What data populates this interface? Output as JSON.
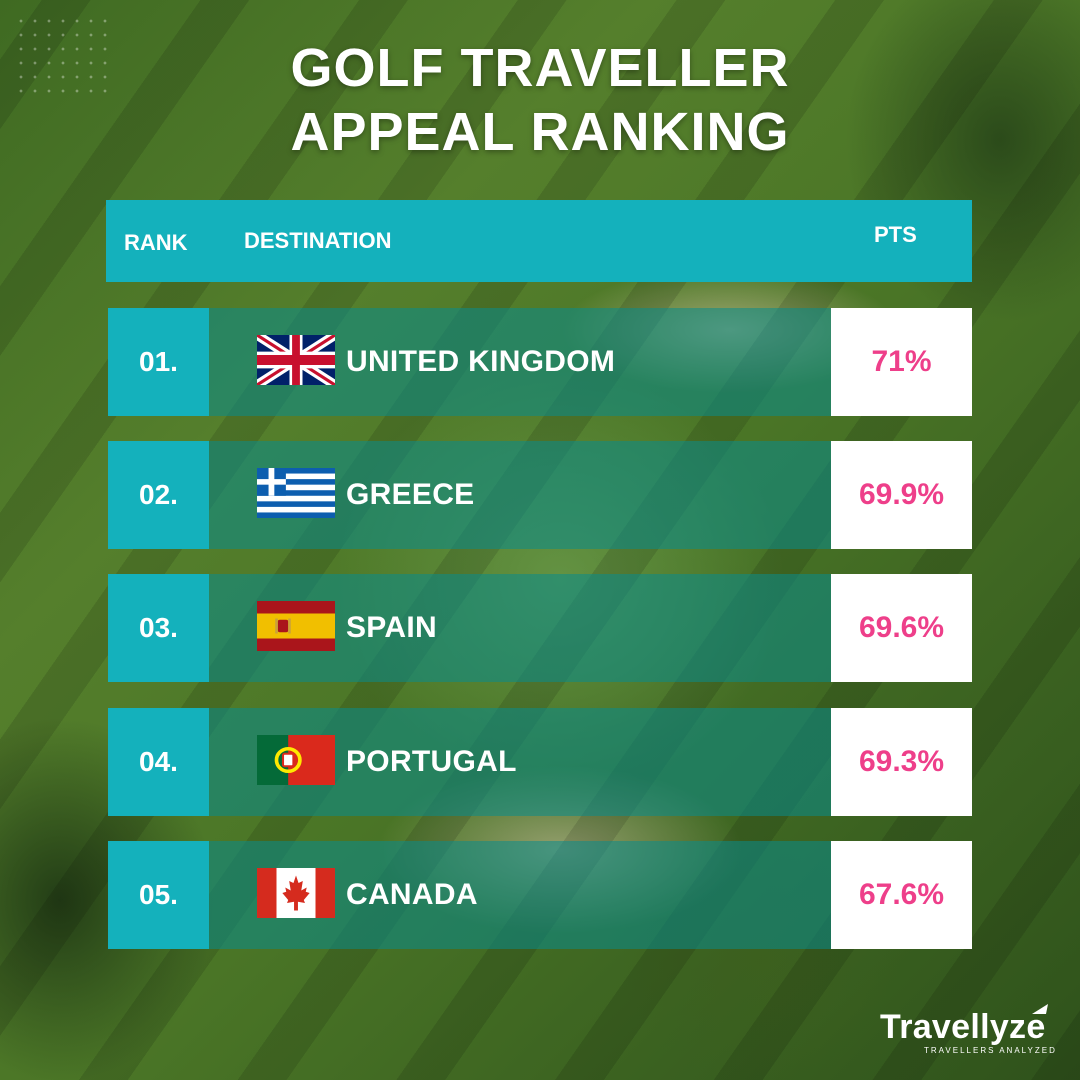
{
  "title": {
    "line1": "GOLF TRAVELLER",
    "line2": "APPEAL RANKING"
  },
  "table": {
    "headers": {
      "rank": "RANK",
      "destination": "DESTINATION",
      "pts": "PTS"
    },
    "rows": [
      {
        "rank": "01.",
        "destination": "UNITED KINGDOM",
        "pts": "71%",
        "flag": "uk-flag-icon"
      },
      {
        "rank": "02.",
        "destination": "GREECE",
        "pts": "69.9%",
        "flag": "greece-flag-icon"
      },
      {
        "rank": "03.",
        "destination": "SPAIN",
        "pts": "69.6%",
        "flag": "spain-flag-icon"
      },
      {
        "rank": "04.",
        "destination": "PORTUGAL",
        "pts": "69.3%",
        "flag": "portugal-flag-icon"
      },
      {
        "rank": "05.",
        "destination": "CANADA",
        "pts": "67.6%",
        "flag": "canada-flag-icon"
      }
    ]
  },
  "brand": {
    "name": "Travellyze",
    "tagline": "TRAVELLERS ANALYZED"
  },
  "colors": {
    "teal": "#14b1bc",
    "pink": "#ee3f8a",
    "white": "#ffffff"
  }
}
